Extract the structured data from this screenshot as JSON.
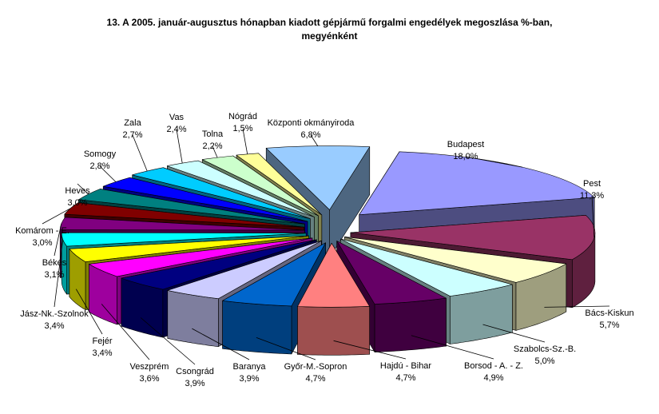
{
  "chart_data": {
    "type": "pie",
    "title_line1": "13. A  2005. január-augusztus hónapban kiadott gépjármű forgalmi engedélyek megoszlása %-ban,",
    "title_line2": "megyénként",
    "slices": [
      {
        "name": "Budapest",
        "value": 18.0,
        "label": "18,0%",
        "color": "#9999ff"
      },
      {
        "name": "Pest",
        "value": 11.3,
        "label": "11,3%",
        "color": "#993366"
      },
      {
        "name": "Bács-Kiskun",
        "value": 5.7,
        "label": "5,7%",
        "color": "#ffffcc"
      },
      {
        "name": "Szabolcs-Sz.-B.",
        "value": 5.0,
        "label": "5,0%",
        "color": "#ccffff"
      },
      {
        "name": "Borsod - A. - Z.",
        "value": 4.9,
        "label": "4,9%",
        "color": "#660066"
      },
      {
        "name": "Hajdú - Bihar",
        "value": 4.7,
        "label": "4,7%",
        "color": "#ff8080"
      },
      {
        "name": "Győr-M.-Sopron",
        "value": 4.7,
        "label": "4,7%",
        "color": "#0066cc"
      },
      {
        "name": "Baranya",
        "value": 3.9,
        "label": "3,9%",
        "color": "#ccccff"
      },
      {
        "name": "Csongrád",
        "value": 3.9,
        "label": "3,9%",
        "color": "#000080"
      },
      {
        "name": "Veszprém",
        "value": 3.6,
        "label": "3,6%",
        "color": "#ff00ff"
      },
      {
        "name": "Fejér",
        "value": 3.4,
        "label": "3,4%",
        "color": "#ffff00"
      },
      {
        "name": "Jász-Nk.-Szolnok",
        "value": 3.4,
        "label": "3,4%",
        "color": "#00ffff"
      },
      {
        "name": "Békés",
        "value": 3.1,
        "label": "3,1%",
        "color": "#800080"
      },
      {
        "name": "Komárom - E.",
        "value": 3.0,
        "label": "3,0%",
        "color": "#800000"
      },
      {
        "name": "Heves",
        "value": 3.0,
        "label": "3,0%",
        "color": "#008080"
      },
      {
        "name": "Somogy",
        "value": 2.8,
        "label": "2,8%",
        "color": "#0000ff"
      },
      {
        "name": "Zala",
        "value": 2.7,
        "label": "2,7%",
        "color": "#00ccff"
      },
      {
        "name": "Vas",
        "value": 2.4,
        "label": "2,4%",
        "color": "#ccffff"
      },
      {
        "name": "Tolna",
        "value": 2.2,
        "label": "2,2%",
        "color": "#ccffcc"
      },
      {
        "name": "Nógrád",
        "value": 1.5,
        "label": "1,5%",
        "color": "#ffff99"
      },
      {
        "name": "Központi okmányiroda",
        "value": 6.8,
        "label": "6,8%",
        "color": "#99ccff"
      }
    ]
  }
}
